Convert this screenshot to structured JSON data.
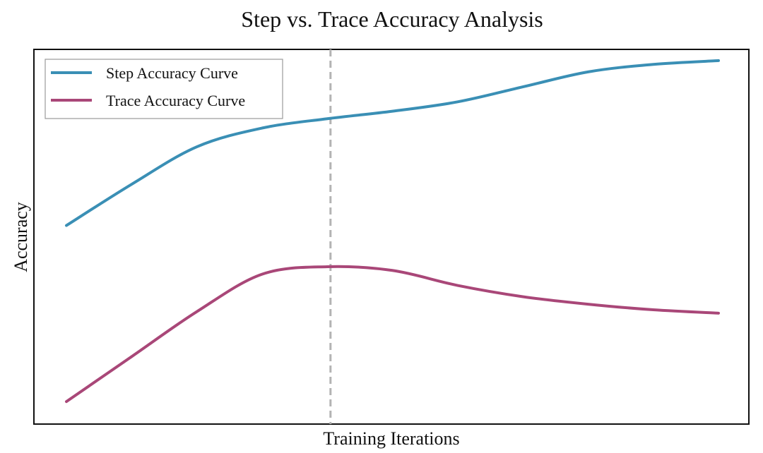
{
  "chart_data": {
    "type": "line",
    "title": "Step vs. Trace Accuracy Analysis",
    "xlabel": "Training Iterations",
    "ylabel": "Accuracy",
    "xlim": [
      0,
      100
    ],
    "ylim": [
      0,
      1
    ],
    "grid": false,
    "legend_position": "top-left",
    "x": [
      0,
      10,
      20,
      30,
      40,
      50,
      60,
      70,
      80,
      90,
      100
    ],
    "series": [
      {
        "name": "Step Accuracy Curve",
        "color": "#3a8fb5",
        "values": [
          0.53,
          0.64,
          0.74,
          0.79,
          0.815,
          0.835,
          0.86,
          0.9,
          0.94,
          0.96,
          0.97
        ]
      },
      {
        "name": "Trace Accuracy Curve",
        "color": "#a94778",
        "values": [
          0.06,
          0.18,
          0.3,
          0.4,
          0.42,
          0.41,
          0.37,
          0.34,
          0.32,
          0.305,
          0.296
        ]
      }
    ],
    "annotations": [
      {
        "type": "vertical-dashed-line",
        "x": 40.5,
        "color": "#b3b3b3"
      }
    ]
  }
}
